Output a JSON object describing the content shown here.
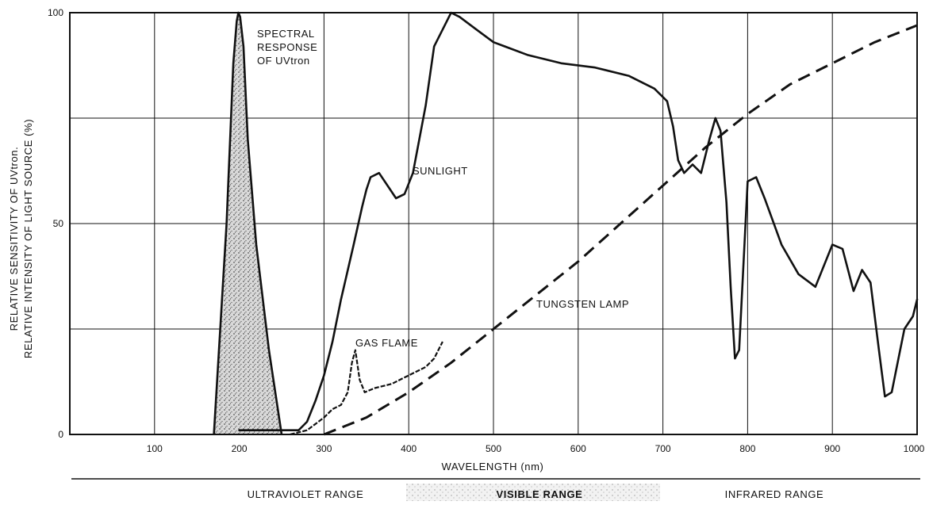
{
  "chart_data": {
    "type": "line",
    "xlabel": "WAVELENGTH (nm)",
    "ylabel_lines": [
      "RELATIVE SENSITIVITY OF UVtron.",
      "RELATIVE INTENSITY OF LIGHT SOURCE (%)"
    ],
    "xlim": [
      0,
      1000
    ],
    "ylim": [
      0,
      100
    ],
    "x_ticks": [
      "0",
      "100",
      "200",
      "300",
      "400",
      "500",
      "600",
      "700",
      "800",
      "900",
      "1000"
    ],
    "x_tick_values": [
      0,
      100,
      200,
      300,
      400,
      500,
      600,
      700,
      800,
      900,
      1000
    ],
    "y_ticks": [
      "0",
      "50",
      "100"
    ],
    "y_tick_values": [
      0,
      50,
      100
    ],
    "grid": true,
    "colors": {
      "line": "#111111",
      "grid": "#111111",
      "fill": "#bfbfbf"
    },
    "series": [
      {
        "name": "SPECTRAL RESPONSE OF UVtron",
        "label_lines": [
          "SPECTRAL",
          "RESPONSE",
          "OF UVtron"
        ],
        "style": "solid-filled",
        "x": [
          170,
          185,
          193,
          197,
          199,
          201,
          205,
          210,
          220,
          235,
          250
        ],
        "y": [
          0,
          50,
          88,
          98,
          100,
          99,
          92,
          70,
          45,
          20,
          0
        ]
      },
      {
        "name": "SUNLIGHT",
        "label_lines": [
          "SUNLIGHT"
        ],
        "style": "solid",
        "x": [
          200,
          210,
          230,
          250,
          260,
          270,
          280,
          290,
          300,
          310,
          320,
          335,
          345,
          350,
          355,
          365,
          375,
          385,
          395,
          405,
          420,
          430,
          440,
          445,
          450,
          460,
          480,
          500,
          540,
          580,
          620,
          660,
          690,
          705,
          712,
          718,
          725,
          735,
          745,
          755,
          762,
          768,
          775,
          780,
          785,
          790,
          800,
          810,
          820,
          840,
          860,
          880,
          900,
          912,
          925,
          935,
          945,
          955,
          962,
          970,
          978,
          985,
          995,
          1000
        ],
        "y": [
          1,
          1,
          1,
          1,
          1,
          1,
          3,
          8,
          14,
          22,
          32,
          45,
          54,
          58,
          61,
          62,
          59,
          56,
          57,
          62,
          78,
          92,
          96,
          98,
          100,
          99,
          96,
          93,
          90,
          88,
          87,
          85,
          82,
          79,
          73,
          65,
          62,
          64,
          62,
          70,
          75,
          72,
          55,
          35,
          18,
          20,
          60,
          61,
          56,
          45,
          38,
          35,
          45,
          44,
          34,
          39,
          36,
          20,
          9,
          10,
          18,
          25,
          28,
          32
        ]
      },
      {
        "name": "GAS FLAME",
        "label_lines": [
          "GAS FLAME"
        ],
        "style": "wavy",
        "x": [
          260,
          280,
          300,
          310,
          320,
          328,
          333,
          337,
          342,
          348,
          360,
          380,
          400,
          420,
          430,
          440
        ],
        "y": [
          0,
          1,
          4,
          6,
          7,
          10,
          17,
          20,
          13,
          10,
          11,
          12,
          14,
          16,
          18,
          22
        ]
      },
      {
        "name": "TUNGSTEN LAMP",
        "label_lines": [
          "TUNGSTEN LAMP"
        ],
        "style": "dashed",
        "x": [
          300,
          350,
          400,
          450,
          500,
          550,
          600,
          650,
          700,
          750,
          800,
          850,
          900,
          950,
          1000
        ],
        "y": [
          0,
          4,
          10,
          17,
          25,
          33,
          41,
          50,
          59,
          68,
          76,
          83,
          88,
          93,
          97
        ]
      }
    ],
    "ranges": [
      {
        "label": "ULTRAVIOLET RANGE"
      },
      {
        "label": "VISIBLE RANGE"
      },
      {
        "label": "INFRARED RANGE"
      }
    ]
  }
}
